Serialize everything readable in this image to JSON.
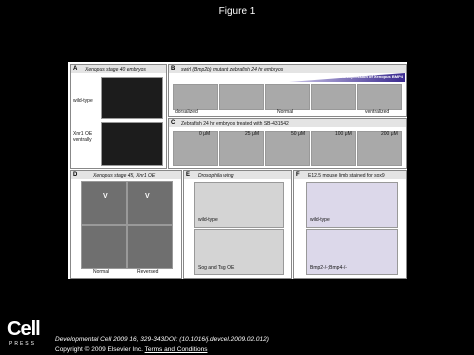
{
  "header": {
    "title": "Figure 1"
  },
  "panels": [
    {
      "label": "A",
      "title": "Xenopus stage 40 embryos",
      "rows": [
        "wild-type",
        "Xnr1 OE ventrally"
      ]
    },
    {
      "label": "B",
      "title": "swirl (Bmp2b) mutant zebrafish 24 hr embryos",
      "banner": "overexpression of Xenopus BMP4",
      "captions": [
        "dorsalized",
        "Normal",
        "ventralized"
      ]
    },
    {
      "label": "C",
      "title": "Zebrafish 24 hr embryos treated with SB-431542",
      "captions": [
        "0 μM",
        "25 μM",
        "50 μM",
        "100 μM",
        "200 μM"
      ]
    },
    {
      "label": "D",
      "title": "Xenopus stage 45, Xnr1 OE",
      "marks": [
        "V",
        "V"
      ],
      "captions": [
        "Normal",
        "Reversed"
      ]
    },
    {
      "label": "E",
      "title": "Drosophila wing",
      "captions": [
        "wild-type",
        "Sog and Tsg OE"
      ]
    },
    {
      "label": "F",
      "title": "E12.5 mouse limb stained for sox9",
      "captions": [
        "wild-type",
        "Bmp2-/-;Bmp4-/-"
      ]
    }
  ],
  "footer": {
    "citation": "Developmental Cell 2009 16, 329-343DOI: (10.1016/j.devcel.2009.02.012)",
    "copyright": "Copyright © 2009 Elsevier Inc.",
    "link": "Terms and Conditions",
    "logo": "Cell",
    "logo_sub": "PRESS"
  }
}
